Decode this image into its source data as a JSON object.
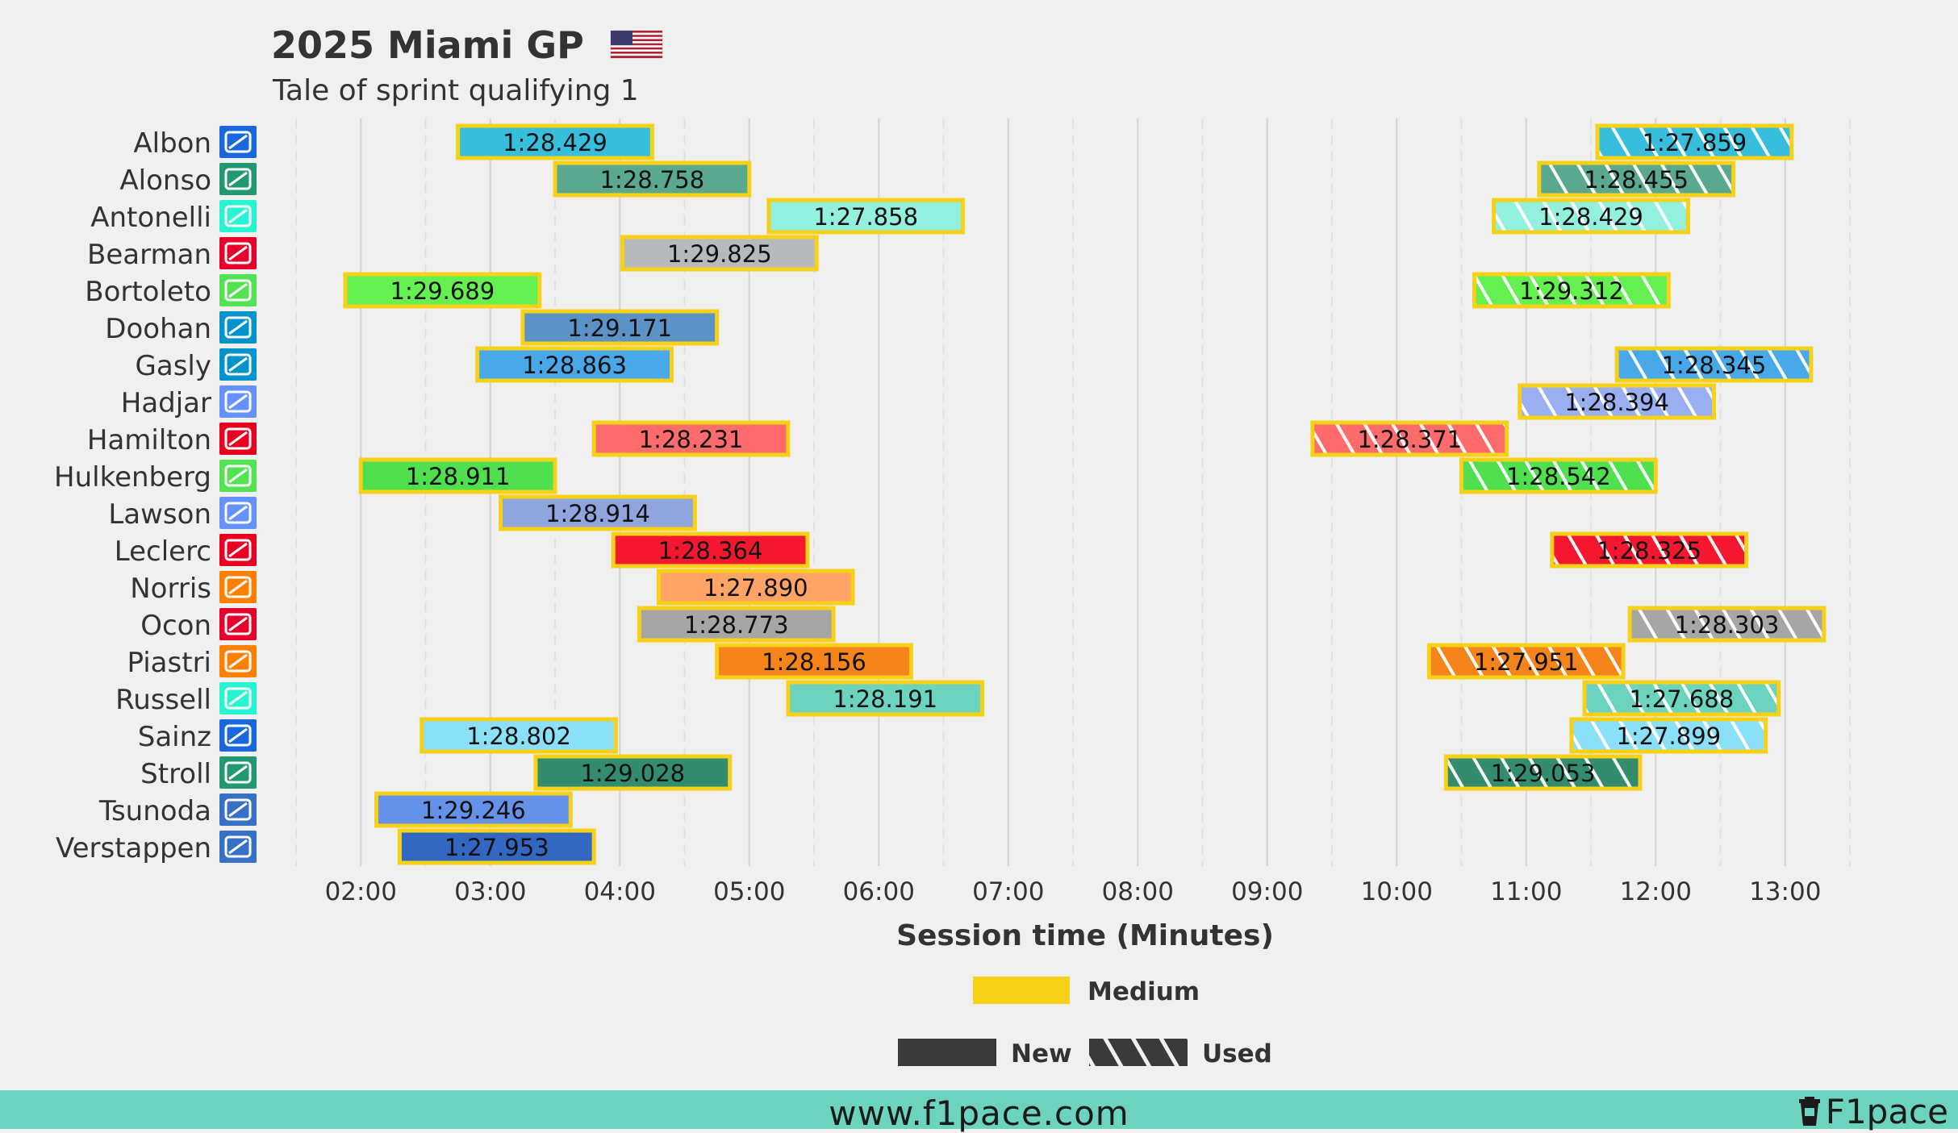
{
  "title": "2025 Miami GP",
  "subtitle": "Tale of sprint qualifying 1",
  "flag_icon": "us-flag-icon",
  "footer": {
    "url": "www.f1pace.com",
    "brand": "F1pace"
  },
  "colors": {
    "background": "#f0f0f0",
    "medium": "#f7d117",
    "footer": "#6cd3bf",
    "grid": "#cccccc"
  },
  "legend": {
    "compound": [
      {
        "label": "Medium",
        "color": "#f7d117"
      }
    ],
    "tyre_state": [
      {
        "label": "New",
        "style": "solid"
      },
      {
        "label": "Used",
        "style": "hatched"
      }
    ]
  },
  "chart_data": {
    "type": "bar",
    "orientation": "horizontal-gantt",
    "title": "2025 Miami GP",
    "subtitle": "Tale of sprint qualifying 1",
    "xlabel": "Session time (Minutes)",
    "ylabel": "",
    "xlim": [
      1.5,
      13.5
    ],
    "xticks": [
      2,
      3,
      4,
      5,
      6,
      7,
      8,
      9,
      10,
      11,
      12,
      13
    ],
    "xtick_labels": [
      "02:00",
      "03:00",
      "04:00",
      "05:00",
      "06:00",
      "07:00",
      "08:00",
      "09:00",
      "10:00",
      "11:00",
      "12:00",
      "13:00"
    ],
    "grid": true,
    "drivers": [
      {
        "name": "Albon",
        "team_icon": "williams-logo-icon",
        "team_color": "#1868db",
        "laps": [
          {
            "start": 2.75,
            "end": 4.25,
            "time": "1:28.429",
            "color": "#37bedd",
            "used": false,
            "compound": "Medium"
          },
          {
            "start": 11.55,
            "end": 13.05,
            "time": "1:27.859",
            "color": "#37bedd",
            "used": true,
            "compound": "Medium"
          }
        ]
      },
      {
        "name": "Alonso",
        "team_icon": "aston-martin-logo-icon",
        "team_color": "#229971",
        "laps": [
          {
            "start": 3.5,
            "end": 5.0,
            "time": "1:28.758",
            "color": "#5ba891",
            "used": false,
            "compound": "Medium"
          },
          {
            "start": 11.1,
            "end": 12.6,
            "time": "1:28.455",
            "color": "#5ba891",
            "used": true,
            "compound": "Medium"
          }
        ]
      },
      {
        "name": "Antonelli",
        "team_icon": "mercedes-logo-icon",
        "team_color": "#27f4d2",
        "laps": [
          {
            "start": 5.15,
            "end": 6.65,
            "time": "1:27.858",
            "color": "#93f0df",
            "used": false,
            "compound": "Medium"
          },
          {
            "start": 10.75,
            "end": 12.25,
            "time": "1:28.429",
            "color": "#93f0df",
            "used": true,
            "compound": "Medium"
          }
        ]
      },
      {
        "name": "Bearman",
        "team_icon": "haas-logo-icon",
        "team_color": "#e6002b",
        "laps": [
          {
            "start": 4.02,
            "end": 5.52,
            "time": "1:29.825",
            "color": "#b6babd",
            "used": false,
            "compound": "Medium"
          }
        ]
      },
      {
        "name": "Bortoleto",
        "team_icon": "sauber-logo-icon",
        "team_color": "#52e252",
        "laps": [
          {
            "start": 1.88,
            "end": 3.38,
            "time": "1:29.689",
            "color": "#64f051",
            "used": false,
            "compound": "Medium"
          },
          {
            "start": 10.6,
            "end": 12.1,
            "time": "1:29.312",
            "color": "#64f051",
            "used": true,
            "compound": "Medium"
          }
        ]
      },
      {
        "name": "Doohan",
        "team_icon": "alpine-logo-icon",
        "team_color": "#0093cc",
        "laps": [
          {
            "start": 3.25,
            "end": 4.75,
            "time": "1:29.171",
            "color": "#5b93c7",
            "used": false,
            "compound": "Medium"
          }
        ]
      },
      {
        "name": "Gasly",
        "team_icon": "alpine-logo-icon",
        "team_color": "#0093cc",
        "laps": [
          {
            "start": 2.9,
            "end": 4.4,
            "time": "1:28.863",
            "color": "#48a8e8",
            "used": false,
            "compound": "Medium"
          },
          {
            "start": 11.7,
            "end": 13.2,
            "time": "1:28.345",
            "color": "#48a8e8",
            "used": true,
            "compound": "Medium"
          }
        ]
      },
      {
        "name": "Hadjar",
        "team_icon": "racing-bulls-logo-icon",
        "team_color": "#6692ff",
        "laps": [
          {
            "start": 10.95,
            "end": 12.45,
            "time": "1:28.394",
            "color": "#9aaff2",
            "used": true,
            "compound": "Medium"
          }
        ]
      },
      {
        "name": "Hamilton",
        "team_icon": "ferrari-logo-icon",
        "team_color": "#e80020",
        "laps": [
          {
            "start": 3.8,
            "end": 5.3,
            "time": "1:28.231",
            "color": "#fd6b6c",
            "used": false,
            "compound": "Medium"
          },
          {
            "start": 9.35,
            "end": 10.85,
            "time": "1:28.371",
            "color": "#fd6b6c",
            "used": true,
            "compound": "Medium"
          }
        ]
      },
      {
        "name": "Hulkenberg",
        "team_icon": "sauber-logo-icon",
        "team_color": "#52e252",
        "laps": [
          {
            "start": 2.0,
            "end": 3.5,
            "time": "1:28.911",
            "color": "#4fdf4f",
            "used": false,
            "compound": "Medium"
          },
          {
            "start": 10.5,
            "end": 12.0,
            "time": "1:28.542",
            "color": "#4fdf4f",
            "used": true,
            "compound": "Medium"
          }
        ]
      },
      {
        "name": "Lawson",
        "team_icon": "racing-bulls-logo-icon",
        "team_color": "#6692ff",
        "laps": [
          {
            "start": 3.08,
            "end": 4.58,
            "time": "1:28.914",
            "color": "#90a4de",
            "used": false,
            "compound": "Medium"
          }
        ]
      },
      {
        "name": "Leclerc",
        "team_icon": "ferrari-logo-icon",
        "team_color": "#e80020",
        "laps": [
          {
            "start": 3.95,
            "end": 5.45,
            "time": "1:28.364",
            "color": "#f5172f",
            "used": false,
            "compound": "Medium"
          },
          {
            "start": 11.2,
            "end": 12.7,
            "time": "1:28.325",
            "color": "#f5172f",
            "used": true,
            "compound": "Medium"
          }
        ]
      },
      {
        "name": "Norris",
        "team_icon": "mclaren-logo-icon",
        "team_color": "#ff8000",
        "laps": [
          {
            "start": 4.3,
            "end": 5.8,
            "time": "1:27.890",
            "color": "#ffa366",
            "used": false,
            "compound": "Medium"
          }
        ]
      },
      {
        "name": "Ocon",
        "team_icon": "haas-logo-icon",
        "team_color": "#e6002b",
        "laps": [
          {
            "start": 4.15,
            "end": 5.65,
            "time": "1:28.773",
            "color": "#a6a6a6",
            "used": false,
            "compound": "Medium"
          },
          {
            "start": 11.8,
            "end": 13.3,
            "time": "1:28.303",
            "color": "#a6a6a6",
            "used": true,
            "compound": "Medium"
          }
        ]
      },
      {
        "name": "Piastri",
        "team_icon": "mclaren-logo-icon",
        "team_color": "#ff8000",
        "laps": [
          {
            "start": 4.75,
            "end": 6.25,
            "time": "1:28.156",
            "color": "#f5851b",
            "used": false,
            "compound": "Medium"
          },
          {
            "start": 10.25,
            "end": 11.75,
            "time": "1:27.951",
            "color": "#f5851b",
            "used": true,
            "compound": "Medium"
          }
        ]
      },
      {
        "name": "Russell",
        "team_icon": "mercedes-logo-icon",
        "team_color": "#27f4d2",
        "laps": [
          {
            "start": 5.3,
            "end": 6.8,
            "time": "1:28.191",
            "color": "#6cd3bf",
            "used": false,
            "compound": "Medium"
          },
          {
            "start": 11.45,
            "end": 12.95,
            "time": "1:27.688",
            "color": "#6cd3bf",
            "used": true,
            "compound": "Medium"
          }
        ]
      },
      {
        "name": "Sainz",
        "team_icon": "williams-logo-icon",
        "team_color": "#1868db",
        "laps": [
          {
            "start": 2.47,
            "end": 3.97,
            "time": "1:28.802",
            "color": "#8ae0f7",
            "used": false,
            "compound": "Medium"
          },
          {
            "start": 11.35,
            "end": 12.85,
            "time": "1:27.899",
            "color": "#8ae0f7",
            "used": true,
            "compound": "Medium"
          }
        ]
      },
      {
        "name": "Stroll",
        "team_icon": "aston-martin-logo-icon",
        "team_color": "#229971",
        "laps": [
          {
            "start": 3.35,
            "end": 4.85,
            "time": "1:29.028",
            "color": "#338c6e",
            "used": false,
            "compound": "Medium"
          },
          {
            "start": 10.38,
            "end": 11.88,
            "time": "1:29.053",
            "color": "#338c6e",
            "used": true,
            "compound": "Medium"
          }
        ]
      },
      {
        "name": "Tsunoda",
        "team_icon": "red-bull-logo-icon",
        "team_color": "#3671c6",
        "laps": [
          {
            "start": 2.12,
            "end": 3.62,
            "time": "1:29.246",
            "color": "#6591e8",
            "used": false,
            "compound": "Medium"
          }
        ]
      },
      {
        "name": "Verstappen",
        "team_icon": "red-bull-logo-icon",
        "team_color": "#3671c6",
        "laps": [
          {
            "start": 2.3,
            "end": 3.8,
            "time": "1:27.953",
            "color": "#3267c2",
            "used": false,
            "compound": "Medium"
          }
        ]
      }
    ]
  }
}
